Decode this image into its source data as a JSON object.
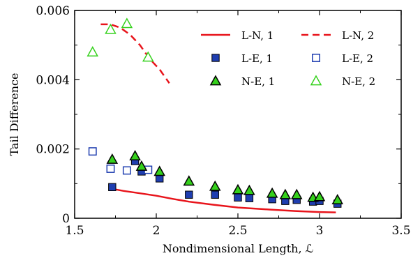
{
  "chart_data": {
    "type": "scatter",
    "xlabel": "Nondimensional Length, ℒ",
    "ylabel": "Tail Difference",
    "xlim": [
      1.5,
      3.5
    ],
    "ylim": [
      0,
      0.006
    ],
    "xticks": [
      1.5,
      2,
      2.5,
      3,
      3.5
    ],
    "xtick_labels": [
      "1.5",
      "2",
      "2.5",
      "3",
      "3.5"
    ],
    "yticks": [
      0,
      0.002,
      0.004,
      0.006
    ],
    "ytick_labels": [
      "0",
      "0.002",
      "0.004",
      "0.006"
    ],
    "grid": false,
    "legend_position": "top-right",
    "series": [
      {
        "name": "L-N, 1",
        "kind": "line",
        "color": "#e8141b",
        "dash": "solid",
        "x": [
          1.73,
          1.8,
          1.9,
          2.0,
          2.1,
          2.2,
          2.35,
          2.5,
          2.7,
          2.85,
          3.0,
          3.1
        ],
        "y": [
          0.00085,
          0.00079,
          0.00072,
          0.00065,
          0.00056,
          0.00048,
          0.00039,
          0.00031,
          0.00025,
          0.00021,
          0.00018,
          0.00017
        ]
      },
      {
        "name": "L-N, 2",
        "kind": "line",
        "color": "#e8141b",
        "dash": "dashed",
        "x": [
          1.66,
          1.72,
          1.78,
          1.84,
          1.9,
          1.96,
          2.02,
          2.08
        ],
        "y": [
          0.0056,
          0.0056,
          0.0055,
          0.0053,
          0.005,
          0.0046,
          0.0043,
          0.0039
        ]
      },
      {
        "name": "L-E, 1",
        "kind": "square-filled",
        "color": "#1f3eb0",
        "x": [
          1.73,
          1.87,
          1.91,
          2.02,
          2.2,
          2.36,
          2.5,
          2.57,
          2.71,
          2.79,
          2.86,
          2.96,
          3.0,
          3.11
        ],
        "y": [
          0.0009,
          0.00165,
          0.00135,
          0.00115,
          0.00068,
          0.00068,
          0.0006,
          0.00058,
          0.00055,
          0.0005,
          0.00053,
          0.00048,
          0.0005,
          0.00042
        ]
      },
      {
        "name": "L-E, 2",
        "kind": "square-open",
        "color": "#1f3eb0",
        "x": [
          1.61,
          1.72,
          1.82,
          1.95
        ],
        "y": [
          0.00193,
          0.00143,
          0.00138,
          0.0014
        ]
      },
      {
        "name": "N-E, 1",
        "kind": "triangle-filled",
        "color": "#35d11c",
        "x": [
          1.73,
          1.87,
          1.91,
          2.02,
          2.2,
          2.36,
          2.5,
          2.57,
          2.71,
          2.79,
          2.86,
          2.96,
          3.0,
          3.11
        ],
        "y": [
          0.0017,
          0.0018,
          0.0015,
          0.00135,
          0.00107,
          0.00092,
          0.00082,
          0.0008,
          0.00072,
          0.00068,
          0.00068,
          0.0006,
          0.00062,
          0.00053
        ]
      },
      {
        "name": "N-E, 2",
        "kind": "triangle-open",
        "color": "#35d11c",
        "x": [
          1.61,
          1.72,
          1.82,
          1.95
        ],
        "y": [
          0.0048,
          0.00545,
          0.00562,
          0.00465
        ]
      }
    ]
  }
}
